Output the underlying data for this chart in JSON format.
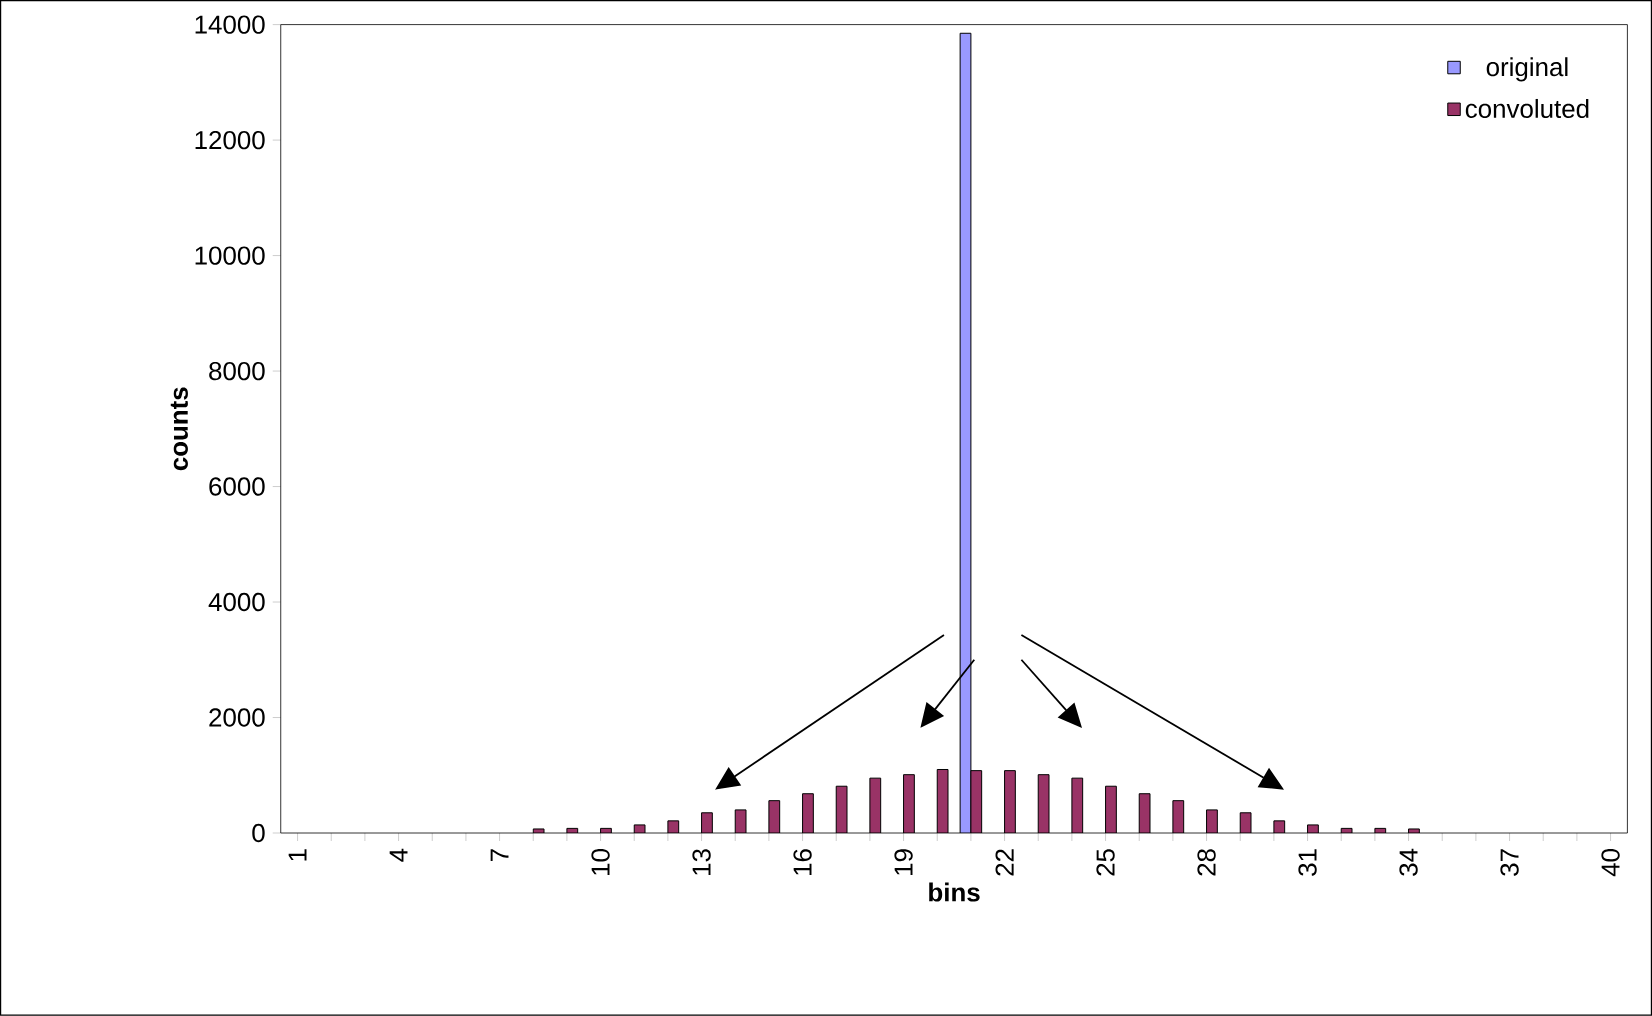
{
  "chart_data": {
    "type": "bar",
    "xlabel": "bins",
    "ylabel": "counts",
    "categories": [
      "1",
      null,
      null,
      "4",
      null,
      null,
      "7",
      null,
      null,
      "10",
      null,
      null,
      "13",
      null,
      null,
      "16",
      null,
      null,
      "19",
      null,
      null,
      "22",
      null,
      null,
      "25",
      null,
      null,
      "28",
      null,
      null,
      "31",
      null,
      null,
      "34",
      null,
      null,
      "37",
      null,
      null,
      "40"
    ],
    "series": [
      {
        "name": "original",
        "color": "#9999ff",
        "values": [
          null,
          null,
          null,
          null,
          null,
          null,
          null,
          null,
          null,
          null,
          null,
          null,
          null,
          null,
          null,
          null,
          null,
          null,
          null,
          null,
          13850,
          null,
          null,
          null,
          null,
          null,
          null,
          null,
          null,
          null,
          null,
          null,
          null,
          null,
          null,
          null,
          null,
          null,
          null,
          null
        ]
      },
      {
        "name": "convoluted",
        "color": "#993366",
        "values": [
          null,
          null,
          null,
          null,
          null,
          null,
          null,
          70,
          80,
          80,
          140,
          210,
          350,
          400,
          560,
          680,
          810,
          950,
          1010,
          1100,
          1080,
          1080,
          1010,
          950,
          810,
          680,
          560,
          400,
          350,
          210,
          140,
          80,
          80,
          70,
          null,
          null,
          null,
          null,
          null,
          null
        ]
      }
    ],
    "ylim": [
      0,
      14000
    ],
    "yticks": [
      0,
      2000,
      4000,
      6000,
      8000,
      10000,
      12000,
      14000
    ],
    "legend": "top right"
  }
}
